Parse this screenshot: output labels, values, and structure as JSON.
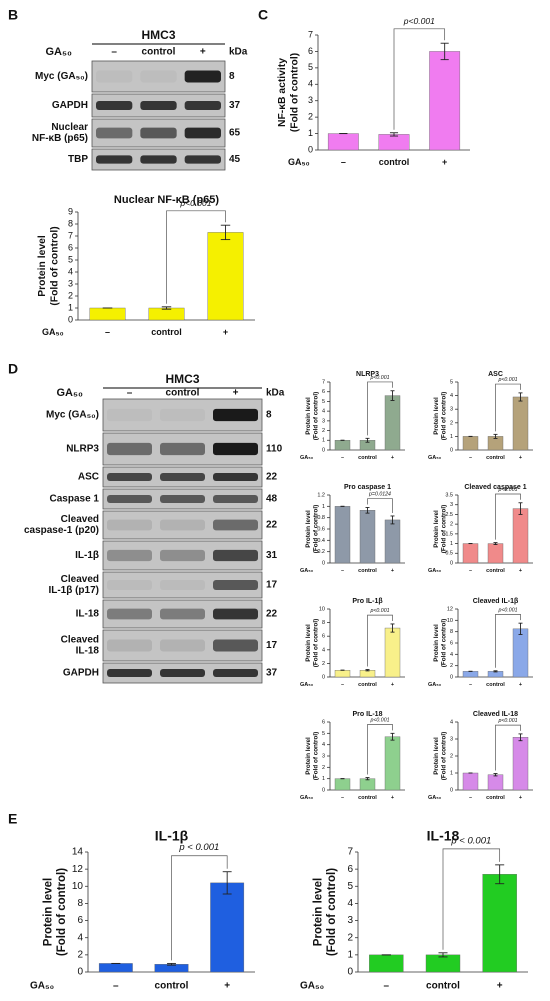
{
  "panels": [
    "B",
    "C",
    "D",
    "E"
  ],
  "blots": [
    {
      "title": "HMC3",
      "row_label": "GA₅₀",
      "lanes": [
        "–",
        "control",
        "+"
      ],
      "kda_label": "kDa",
      "rows": [
        {
          "label": [
            "Myc (GA₅₀)"
          ],
          "kda": "8"
        },
        {
          "label": [
            "GAPDH"
          ],
          "kda": "37"
        },
        {
          "label": [
            "Nuclear",
            "NF-κB (p65)"
          ],
          "kda": "65"
        },
        {
          "label": [
            "TBP"
          ],
          "kda": "45"
        }
      ]
    },
    {
      "title": "HMC3",
      "row_label": "GA₅₀",
      "lanes": [
        "–",
        "control",
        "+"
      ],
      "kda_label": "kDa",
      "rows": [
        {
          "label": [
            "Myc (GA₅₀)"
          ],
          "kda": "8"
        },
        {
          "label": [
            "NLRP3"
          ],
          "kda": "110"
        },
        {
          "label": [
            "ASC"
          ],
          "kda": "22"
        },
        {
          "label": [
            "Caspase 1"
          ],
          "kda": "48"
        },
        {
          "label": [
            "Cleaved",
            "caspase-1 (p20)"
          ],
          "kda": "22"
        },
        {
          "label": [
            "IL-1β"
          ],
          "kda": "31"
        },
        {
          "label": [
            "Cleaved",
            "IL-1β (p17)"
          ],
          "kda": "17"
        },
        {
          "label": [
            "IL-18"
          ],
          "kda": "22"
        },
        {
          "label": [
            "Cleaved",
            "IL-18"
          ],
          "kda": "17"
        },
        {
          "label": [
            "GAPDH"
          ],
          "kda": "37"
        }
      ]
    }
  ],
  "chart_data": [
    {
      "type": "bar",
      "title": "Nuclear NF-κB (p65)",
      "ylabel": [
        "Protein level",
        "(Fold of control)"
      ],
      "x_row_label": "GA₅₀",
      "categories": [
        "–",
        "control",
        "+"
      ],
      "values": [
        1,
        1,
        7.3
      ],
      "errors": [
        0,
        0.1,
        0.6
      ],
      "color": "#f5f000",
      "ylim": [
        0,
        9
      ],
      "yticks": [
        0,
        1,
        2,
        3,
        4,
        5,
        6,
        7,
        8,
        9
      ],
      "annotation": "p<0.001"
    },
    {
      "type": "bar",
      "ylabel": [
        "NF-κB activity",
        "(Fold of control)"
      ],
      "x_row_label": "GA₅₀",
      "categories": [
        "–",
        "control",
        "+"
      ],
      "values": [
        1,
        0.95,
        6
      ],
      "errors": [
        0,
        0.1,
        0.5
      ],
      "color": "#f07cf0",
      "ylim": [
        0,
        7
      ],
      "yticks": [
        0,
        1,
        2,
        3,
        4,
        5,
        6,
        7
      ],
      "annotation": "p<0.001"
    },
    {
      "type": "bar",
      "title": "NLRP3",
      "ylabel": [
        "Protein level",
        "(Fold of control)"
      ],
      "x_row_label": "GA₅₀",
      "categories": [
        "–",
        "control",
        "+"
      ],
      "values": [
        1,
        1,
        5.6
      ],
      "errors": [
        0,
        0.2,
        0.5
      ],
      "color": "#8faa8f",
      "ylim": [
        0,
        7
      ],
      "yticks": [
        0,
        1,
        2,
        3,
        4,
        5,
        6,
        7
      ],
      "annotation": "p<0.001"
    },
    {
      "type": "bar",
      "title": "ASC",
      "ylabel": [
        "Protein level",
        "(Fold of control)"
      ],
      "x_row_label": "GA₅₀",
      "categories": [
        "–",
        "control",
        "+"
      ],
      "values": [
        1,
        1,
        3.9
      ],
      "errors": [
        0,
        0.15,
        0.3
      ],
      "color": "#b5a27a",
      "ylim": [
        0,
        5
      ],
      "yticks": [
        0,
        1,
        2,
        3,
        4,
        5
      ],
      "annotation": "p<0.001"
    },
    {
      "type": "bar",
      "title": "Pro caspase 1",
      "ylabel": [
        "Protein level",
        "(Fold of control)"
      ],
      "x_row_label": "GA₅₀",
      "categories": [
        "–",
        "control",
        "+"
      ],
      "values": [
        1,
        0.93,
        0.76
      ],
      "errors": [
        0,
        0.05,
        0.07
      ],
      "color": "#8e99a8",
      "ylim": [
        0,
        1.2
      ],
      "yticks": [
        0,
        0.2,
        0.4,
        0.6,
        0.8,
        1,
        1.2
      ],
      "annotation": "p=0.0124"
    },
    {
      "type": "bar",
      "title": "Cleaved caspase 1",
      "ylabel": [
        "Protein level",
        "(Fold of control)"
      ],
      "x_row_label": "GA₅₀",
      "categories": [
        "–",
        "control",
        "+"
      ],
      "values": [
        1,
        1,
        2.8
      ],
      "errors": [
        0,
        0.05,
        0.3
      ],
      "color": "#f08a8a",
      "ylim": [
        0,
        3.5
      ],
      "yticks": [
        0,
        0.5,
        1,
        1.5,
        2,
        2.5,
        3,
        3.5
      ],
      "annotation": "p<0.001"
    },
    {
      "type": "bar",
      "title": "Pro IL-1β",
      "ylabel": [
        "Protein level",
        "(Fold of control)"
      ],
      "x_row_label": "GA₅₀",
      "categories": [
        "–",
        "control",
        "+"
      ],
      "values": [
        1,
        1,
        7.2
      ],
      "errors": [
        0,
        0.1,
        0.6
      ],
      "color": "#f8f08a",
      "ylim": [
        0,
        10
      ],
      "yticks": [
        0,
        2,
        4,
        6,
        8,
        10
      ],
      "annotation": "p<0.001"
    },
    {
      "type": "bar",
      "title": "Cleaved IL-1β",
      "ylabel": [
        "Protein level",
        "(Fold of control)"
      ],
      "x_row_label": "GA₅₀",
      "categories": [
        "–",
        "control",
        "+"
      ],
      "values": [
        1,
        1,
        8.5
      ],
      "errors": [
        0,
        0.1,
        1
      ],
      "color": "#8aa8e8",
      "ylim": [
        0,
        12
      ],
      "yticks": [
        0,
        2,
        4,
        6,
        8,
        10,
        12
      ],
      "annotation": "p<0.001"
    },
    {
      "type": "bar",
      "title": "Pro IL-18",
      "ylabel": [
        "Protein level",
        "(Fold of control)"
      ],
      "x_row_label": "GA₅₀",
      "categories": [
        "–",
        "control",
        "+"
      ],
      "values": [
        1,
        1,
        4.7
      ],
      "errors": [
        0,
        0.1,
        0.3
      ],
      "color": "#8ed08e",
      "ylim": [
        0,
        6
      ],
      "yticks": [
        0,
        1,
        2,
        3,
        4,
        5,
        6
      ],
      "annotation": "p<0.001"
    },
    {
      "type": "bar",
      "title": "Cleaved IL-18",
      "ylabel": [
        "Protein level",
        "(Fold of control)"
      ],
      "x_row_label": "GA₅₀",
      "categories": [
        "–",
        "control",
        "+"
      ],
      "values": [
        1,
        0.9,
        3.1
      ],
      "errors": [
        0,
        0.07,
        0.2
      ],
      "color": "#d68ae8",
      "ylim": [
        0,
        4
      ],
      "yticks": [
        0,
        1,
        2,
        3,
        4
      ],
      "annotation": "p<0.001"
    },
    {
      "type": "bar",
      "title": "IL-1β",
      "ylabel": [
        "Protein level",
        "(Fold of control)"
      ],
      "x_row_label": "GA₅₀",
      "categories": [
        "–",
        "control",
        "+"
      ],
      "values": [
        1,
        0.9,
        10.4
      ],
      "errors": [
        0,
        0.1,
        1.3
      ],
      "color": "#1f5fe0",
      "ylim": [
        0,
        14
      ],
      "yticks": [
        0,
        2,
        4,
        6,
        8,
        10,
        12,
        14
      ],
      "annotation": "p < 0.001"
    },
    {
      "type": "bar",
      "title": "IL-18",
      "ylabel": [
        "Protein level",
        "(Fold of control)"
      ],
      "x_row_label": "GA₅₀",
      "categories": [
        "–",
        "control",
        "+"
      ],
      "values": [
        1,
        1,
        5.7
      ],
      "errors": [
        0,
        0.12,
        0.55
      ],
      "color": "#22cc22",
      "ylim": [
        0,
        7
      ],
      "yticks": [
        0,
        1,
        2,
        3,
        4,
        5,
        6,
        7
      ],
      "annotation": "p < 0.001"
    }
  ]
}
